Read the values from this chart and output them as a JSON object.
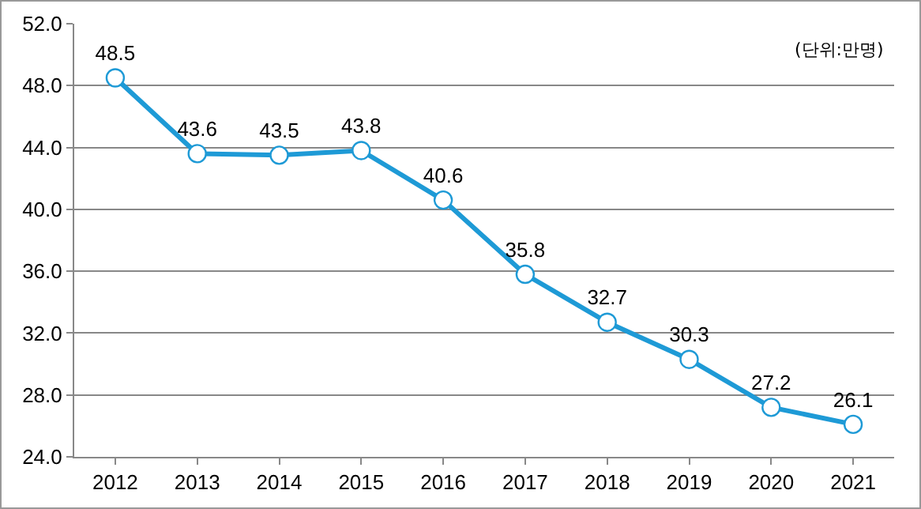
{
  "chart_data": {
    "type": "line",
    "categories": [
      "2012",
      "2013",
      "2014",
      "2015",
      "2016",
      "2017",
      "2018",
      "2019",
      "2020",
      "2021"
    ],
    "series": [
      {
        "color": "#1e9ad6",
        "values": [
          48.5,
          43.6,
          43.5,
          43.8,
          40.6,
          35.8,
          32.7,
          30.3,
          27.2,
          26.1
        ]
      }
    ],
    "ylim": [
      24,
      52
    ],
    "yticks": [
      {
        "value": 24,
        "label": "24.0"
      },
      {
        "value": 28,
        "label": "28.0"
      },
      {
        "value": 32,
        "label": "32.0"
      },
      {
        "value": 36,
        "label": "36.0"
      },
      {
        "value": 40,
        "label": "40.0"
      },
      {
        "value": 44,
        "label": "44.0"
      },
      {
        "value": 48,
        "label": "48.0"
      },
      {
        "value": 52,
        "label": "52.0"
      }
    ],
    "grid": "y",
    "marker": "circle",
    "line_style": "solid",
    "data_labels": true,
    "legend": false,
    "annotations": [
      "(단위:만명)"
    ]
  }
}
